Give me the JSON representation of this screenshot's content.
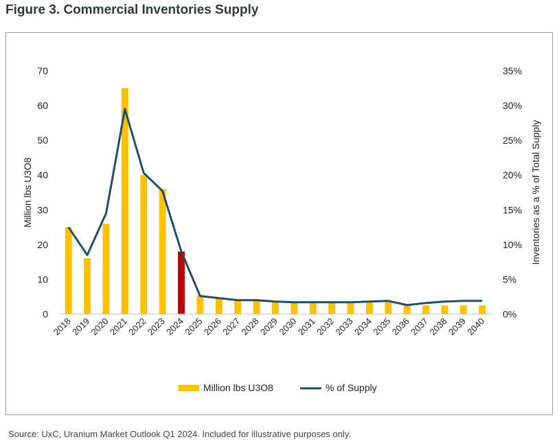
{
  "figure": {
    "title": "Figure 3. Commercial Inventories Supply",
    "source": "Source: UxC, Uranium Market Outlook Q1 2024. Included for illustrative purposes only."
  },
  "chart_data": {
    "type": "bar",
    "title": "Figure 3. Commercial Inventories Supply",
    "categories": [
      "2018",
      "2019",
      "2020",
      "2021",
      "2022",
      "2023",
      "2024",
      "2025",
      "2026",
      "2027",
      "2028",
      "2029",
      "2030",
      "2031",
      "2032",
      "2033",
      "2034",
      "2035",
      "2036",
      "2037",
      "2038",
      "2039",
      "2040"
    ],
    "series": [
      {
        "name": "Million lbs U3O8",
        "type": "bar",
        "axis": "left",
        "color": "#FFC000",
        "highlight_color": "#C00000",
        "highlight_category": "2024",
        "values": [
          25,
          16,
          26,
          65,
          40,
          36,
          18,
          5.5,
          4.5,
          4,
          4,
          3.5,
          3.5,
          3.5,
          3.5,
          3.5,
          3.5,
          3.5,
          2.5,
          2.5,
          2.5,
          2.5,
          2.5
        ]
      },
      {
        "name": "% of Supply",
        "type": "line",
        "axis": "right",
        "color": "#1F4E6B",
        "values": [
          12.5,
          8.5,
          14.5,
          29.5,
          20.3,
          17.7,
          9.0,
          2.6,
          2.3,
          2.0,
          2.0,
          1.8,
          1.7,
          1.7,
          1.7,
          1.7,
          1.8,
          1.9,
          1.3,
          1.6,
          1.8,
          1.9,
          1.9
        ]
      }
    ],
    "ylabel": "Million lbs U3O8",
    "y2label": "Inventories  as a % of Total  Supply",
    "ylim": [
      0,
      70
    ],
    "yticks": [
      "0",
      "10",
      "20",
      "30",
      "40",
      "50",
      "60",
      "70"
    ],
    "y2lim": [
      0,
      35
    ],
    "y2ticks": [
      "0%",
      "5%",
      "10%",
      "15%",
      "20%",
      "25%",
      "30%",
      "35%"
    ],
    "legend": [
      "Million lbs U3O8",
      "% of Supply"
    ],
    "legend_position": "bottom",
    "grid": false
  }
}
